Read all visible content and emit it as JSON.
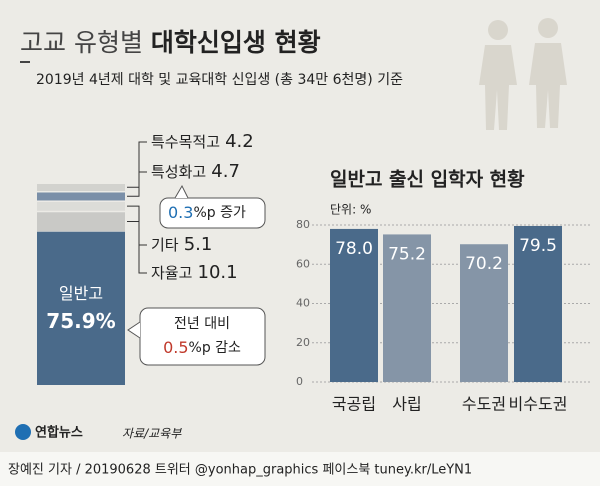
{
  "title_light": "고교 유형별",
  "title_bold": "대학신입생 현황",
  "subtitle": "2019년 4년제 대학 및 교육대학 신입생 (총 34만 6천명) 기준",
  "chart_data": [
    {
      "type": "stacked-bar",
      "categories": [
        "일반고",
        "자율고",
        "기타",
        "특성화고",
        "특수목적고"
      ],
      "values": [
        75.9,
        10.1,
        5.1,
        4.7,
        4.2
      ],
      "value_labels": [
        "75.9%",
        "10.1",
        "5.1",
        "4.7",
        "4.2"
      ],
      "colors": [
        "#4a6a8a",
        "#c9c9c6",
        "#dcdcd8",
        "#7a8fa8",
        "#d2d2ce"
      ],
      "annotations": [
        {
          "parts": [
            "0.3",
            "%p 증가"
          ]
        },
        {
          "lines": [
            "전년 대비"
          ],
          "parts": [
            "0.5",
            "%p 감소"
          ]
        }
      ]
    },
    {
      "type": "bar",
      "title": "일반고 출신 입학자 현황",
      "unit": "단위: %",
      "categories": [
        "국공립",
        "사립",
        "수도권",
        "비수도권"
      ],
      "values": [
        78.0,
        75.2,
        70.2,
        79.5
      ],
      "value_labels": [
        "78.0",
        "75.2",
        "70.2",
        "79.5"
      ],
      "colors": [
        "#4a6a8a",
        "#8595a7",
        "#8595a7",
        "#4a6a8a"
      ],
      "ylim": [
        0,
        80
      ],
      "yticks": [
        0,
        20,
        40,
        60,
        80
      ],
      "grid": true
    }
  ],
  "footer": {
    "logo": "연합뉴스",
    "source": "자료/교육부",
    "credit": "장예진 기자 / 20190628 트위터 @yonhap_graphics  페이스북 tuney.kr/LeYN1"
  }
}
